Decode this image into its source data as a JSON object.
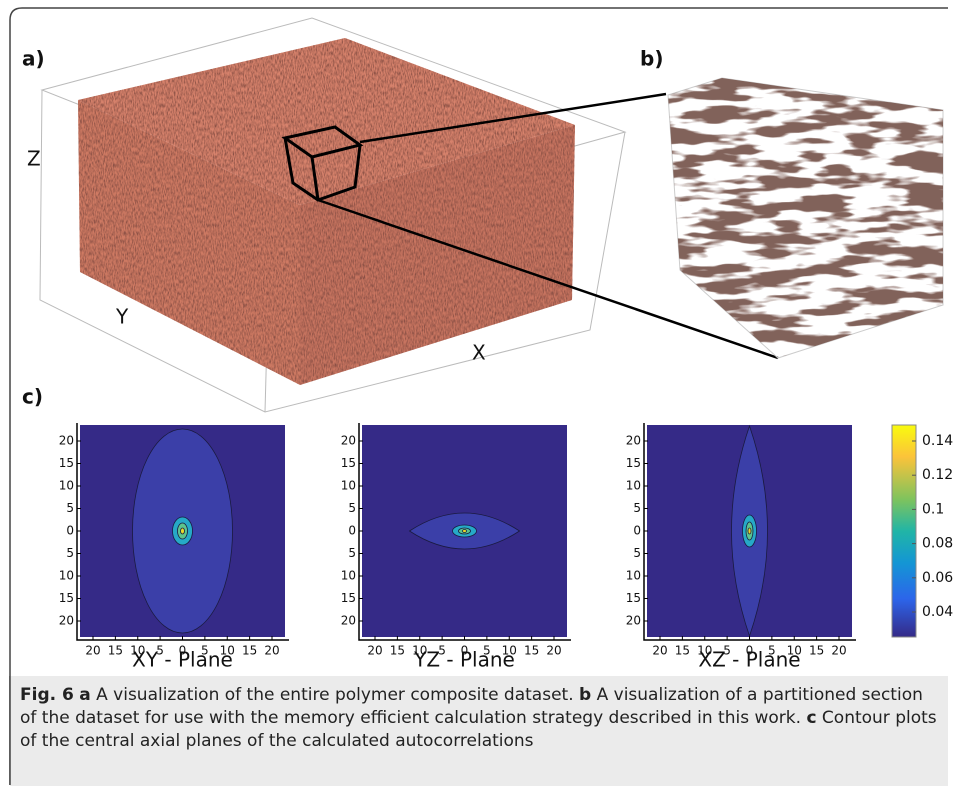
{
  "panels": {
    "a": {
      "label": "a)",
      "axes": {
        "z": "Z",
        "y": "Y",
        "x": "X"
      }
    },
    "b": {
      "label": "b)"
    },
    "c": {
      "label": "c)"
    }
  },
  "contour": {
    "tick_labels": [
      "20",
      "15",
      "10",
      "5",
      "0",
      "5",
      "10",
      "15",
      "20"
    ],
    "plots": [
      {
        "title": "XY - Plane"
      },
      {
        "title": "YZ - Plane"
      },
      {
        "title": "XZ - Plane"
      }
    ],
    "colorbar_ticks": [
      "0.14",
      "0.12",
      "0.1",
      "0.08",
      "0.06",
      "0.04"
    ]
  },
  "caption": {
    "label": "Fig. 6",
    "parts": [
      {
        "key": "a",
        "text": "A visualization of the entire polymer composite dataset."
      },
      {
        "key": "b",
        "text": "A visualization of a partitioned section of the dataset for use with the memory efficient calculation strategy described in this work."
      },
      {
        "key": "c",
        "text": "Contour plots of the central axial planes of the calculated autocorrelations"
      }
    ]
  }
}
